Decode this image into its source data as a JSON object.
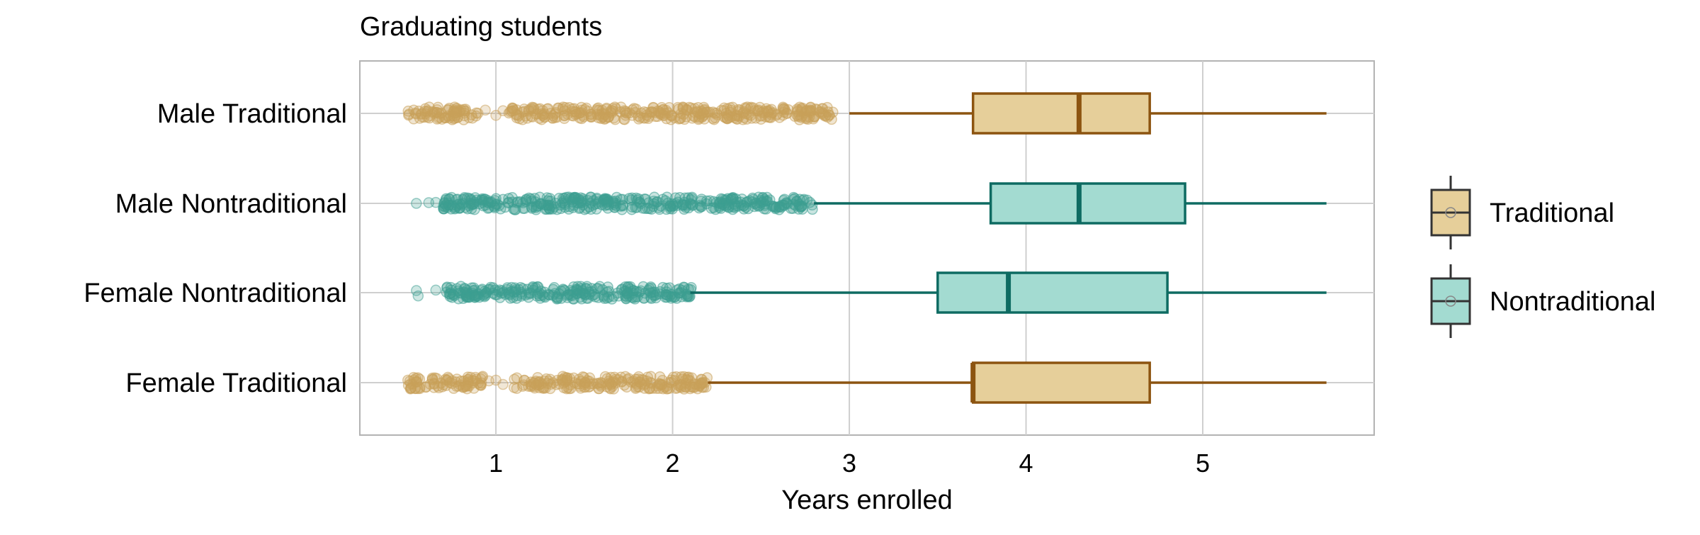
{
  "chart_data": {
    "type": "boxplot",
    "title": "Graduating students",
    "xlabel": "Years enrolled",
    "ylabel": "",
    "xlim": [
      0.23,
      5.97
    ],
    "x_ticks": [
      1,
      2,
      3,
      4,
      5
    ],
    "grid": true,
    "orientation": "horizontal",
    "legend_position": "right",
    "categories": [
      "Male Traditional",
      "Male Nontraditional",
      "Female Nontraditional",
      "Female Traditional"
    ],
    "legend": [
      {
        "label": "Traditional",
        "group": "traditional"
      },
      {
        "label": "Nontraditional",
        "group": "nontraditional"
      }
    ],
    "groups": {
      "traditional": {
        "fill": "#e6cf9a",
        "stroke": "#8c5410",
        "point": "#c9a05a"
      },
      "nontraditional": {
        "fill": "#a3dbd1",
        "stroke": "#0e6b62",
        "point": "#3d9e91"
      }
    },
    "boxes": [
      {
        "category": "Male Traditional",
        "group": "traditional",
        "whisker_low": 3.0,
        "q1": 3.7,
        "median": 4.3,
        "q3": 4.7,
        "whisker_high": 5.7,
        "points": {
          "segments": [
            [
              0.5,
              0.9
            ],
            [
              1.07,
              2.92
            ]
          ],
          "sparse": [
            0.94,
            1.0,
            1.04
          ]
        }
      },
      {
        "category": "Male Nontraditional",
        "group": "nontraditional",
        "whisker_low": 2.8,
        "q1": 3.8,
        "median": 4.3,
        "q3": 4.9,
        "whisker_high": 5.7,
        "points": {
          "segments": [
            [
              0.7,
              2.8
            ]
          ],
          "sparse": [
            0.55,
            0.62,
            0.66
          ]
        }
      },
      {
        "category": "Female Nontraditional",
        "group": "nontraditional",
        "whisker_low": 2.1,
        "q1": 3.5,
        "median": 3.9,
        "q3": 4.8,
        "whisker_high": 5.7,
        "points": {
          "segments": [
            [
              0.72,
              2.12
            ]
          ],
          "sparse": [
            0.55,
            0.56,
            0.66
          ]
        }
      },
      {
        "category": "Female Traditional",
        "group": "traditional",
        "whisker_low": 2.2,
        "q1": 3.7,
        "median": 3.7,
        "q3": 4.7,
        "whisker_high": 5.7,
        "points": {
          "segments": [
            [
              0.5,
              0.93
            ],
            [
              1.1,
              2.2
            ]
          ],
          "sparse": [
            0.96,
            1.0,
            1.04
          ]
        }
      }
    ]
  }
}
